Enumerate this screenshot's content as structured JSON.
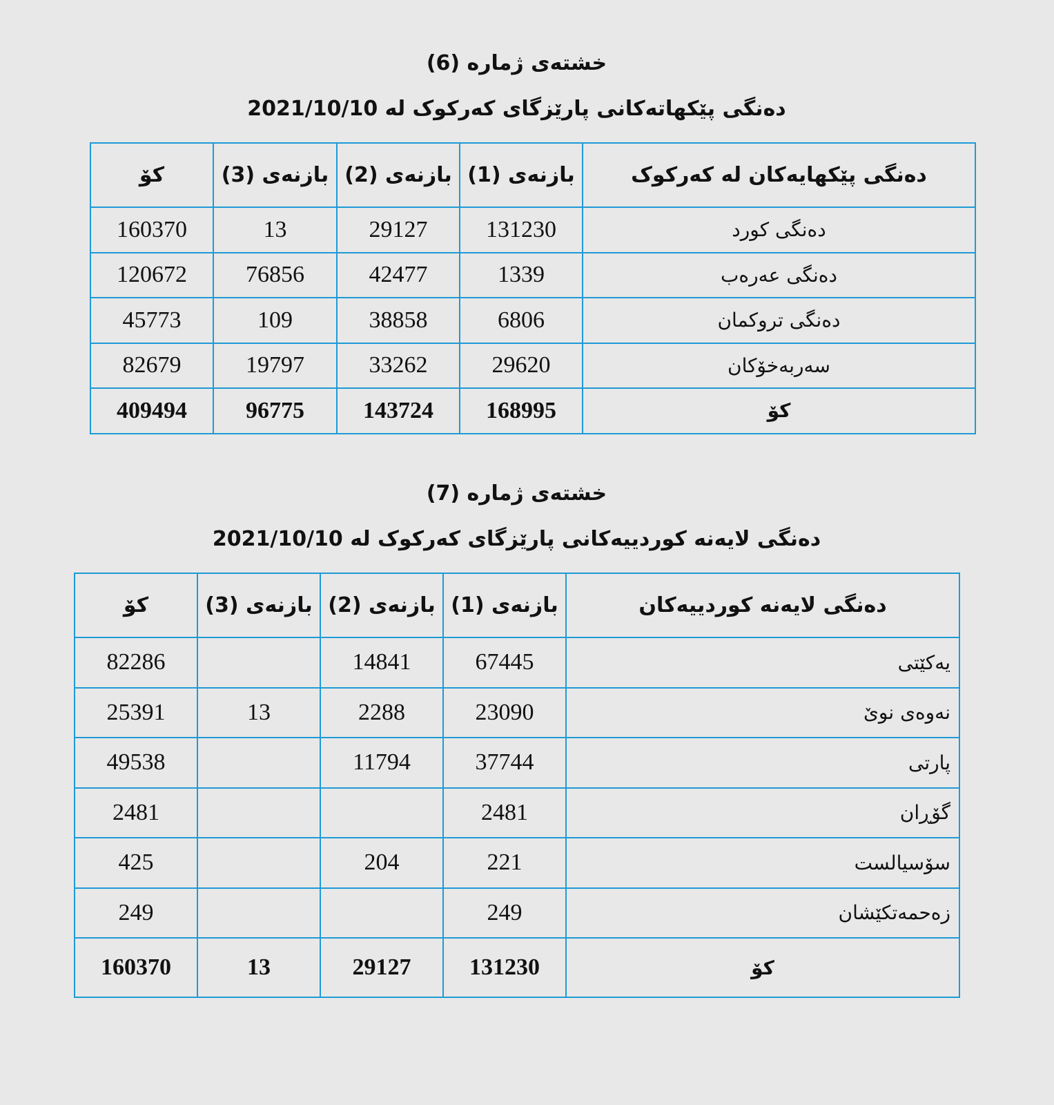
{
  "table6": {
    "number_title": "خشتەی ژمارە (6)",
    "subtitle": "دەنگی پێکهاتەکانی پارێزگای کەرکوک لە 2021/10/10",
    "headers": [
      "دەنگی پێکهایەکان لە کەرکوک",
      "بازنەی (1)",
      "بازنەی (2)",
      "بازنەی (3)",
      "کۆ"
    ],
    "rows": [
      [
        "دەنگی کورد",
        "131230",
        "29127",
        "13",
        "160370"
      ],
      [
        "دەنگی عەرەب",
        "1339",
        "42477",
        "76856",
        "120672"
      ],
      [
        "دەنگی تروکمان",
        "6806",
        "38858",
        "109",
        "45773"
      ],
      [
        "سەربەخۆکان",
        "29620",
        "33262",
        "19797",
        "82679"
      ]
    ],
    "total": [
      "کۆ",
      "168995",
      "143724",
      "96775",
      "409494"
    ]
  },
  "table7": {
    "number_title": "خشتەی ژمارە (7)",
    "subtitle": "دەنگی لایەنە کوردییەکانی پارێزگای کەرکوک لە 2021/10/10",
    "headers": [
      "دەنگی لایەنە کوردییەکان",
      "بازنەی (1)",
      "بازنەی (2)",
      "بازنەی (3)",
      "کۆ"
    ],
    "rows": [
      [
        "یەکێتی",
        "67445",
        "14841",
        "",
        "82286"
      ],
      [
        "نەوەی نوێ",
        "23090",
        "2288",
        "13",
        "25391"
      ],
      [
        "پارتی",
        "37744",
        "11794",
        "",
        "49538"
      ],
      [
        "گۆڕان",
        "2481",
        "",
        "",
        "2481"
      ],
      [
        "سۆسیالست",
        "221",
        "204",
        "",
        "425"
      ],
      [
        "زەحمەتکێشان",
        "249",
        "",
        "",
        "249"
      ]
    ],
    "total": [
      "کۆ",
      "131230",
      "29127",
      "13",
      "160370"
    ]
  },
  "colors": {
    "background": "#e8e8e8",
    "border": "#1e9ad6"
  }
}
